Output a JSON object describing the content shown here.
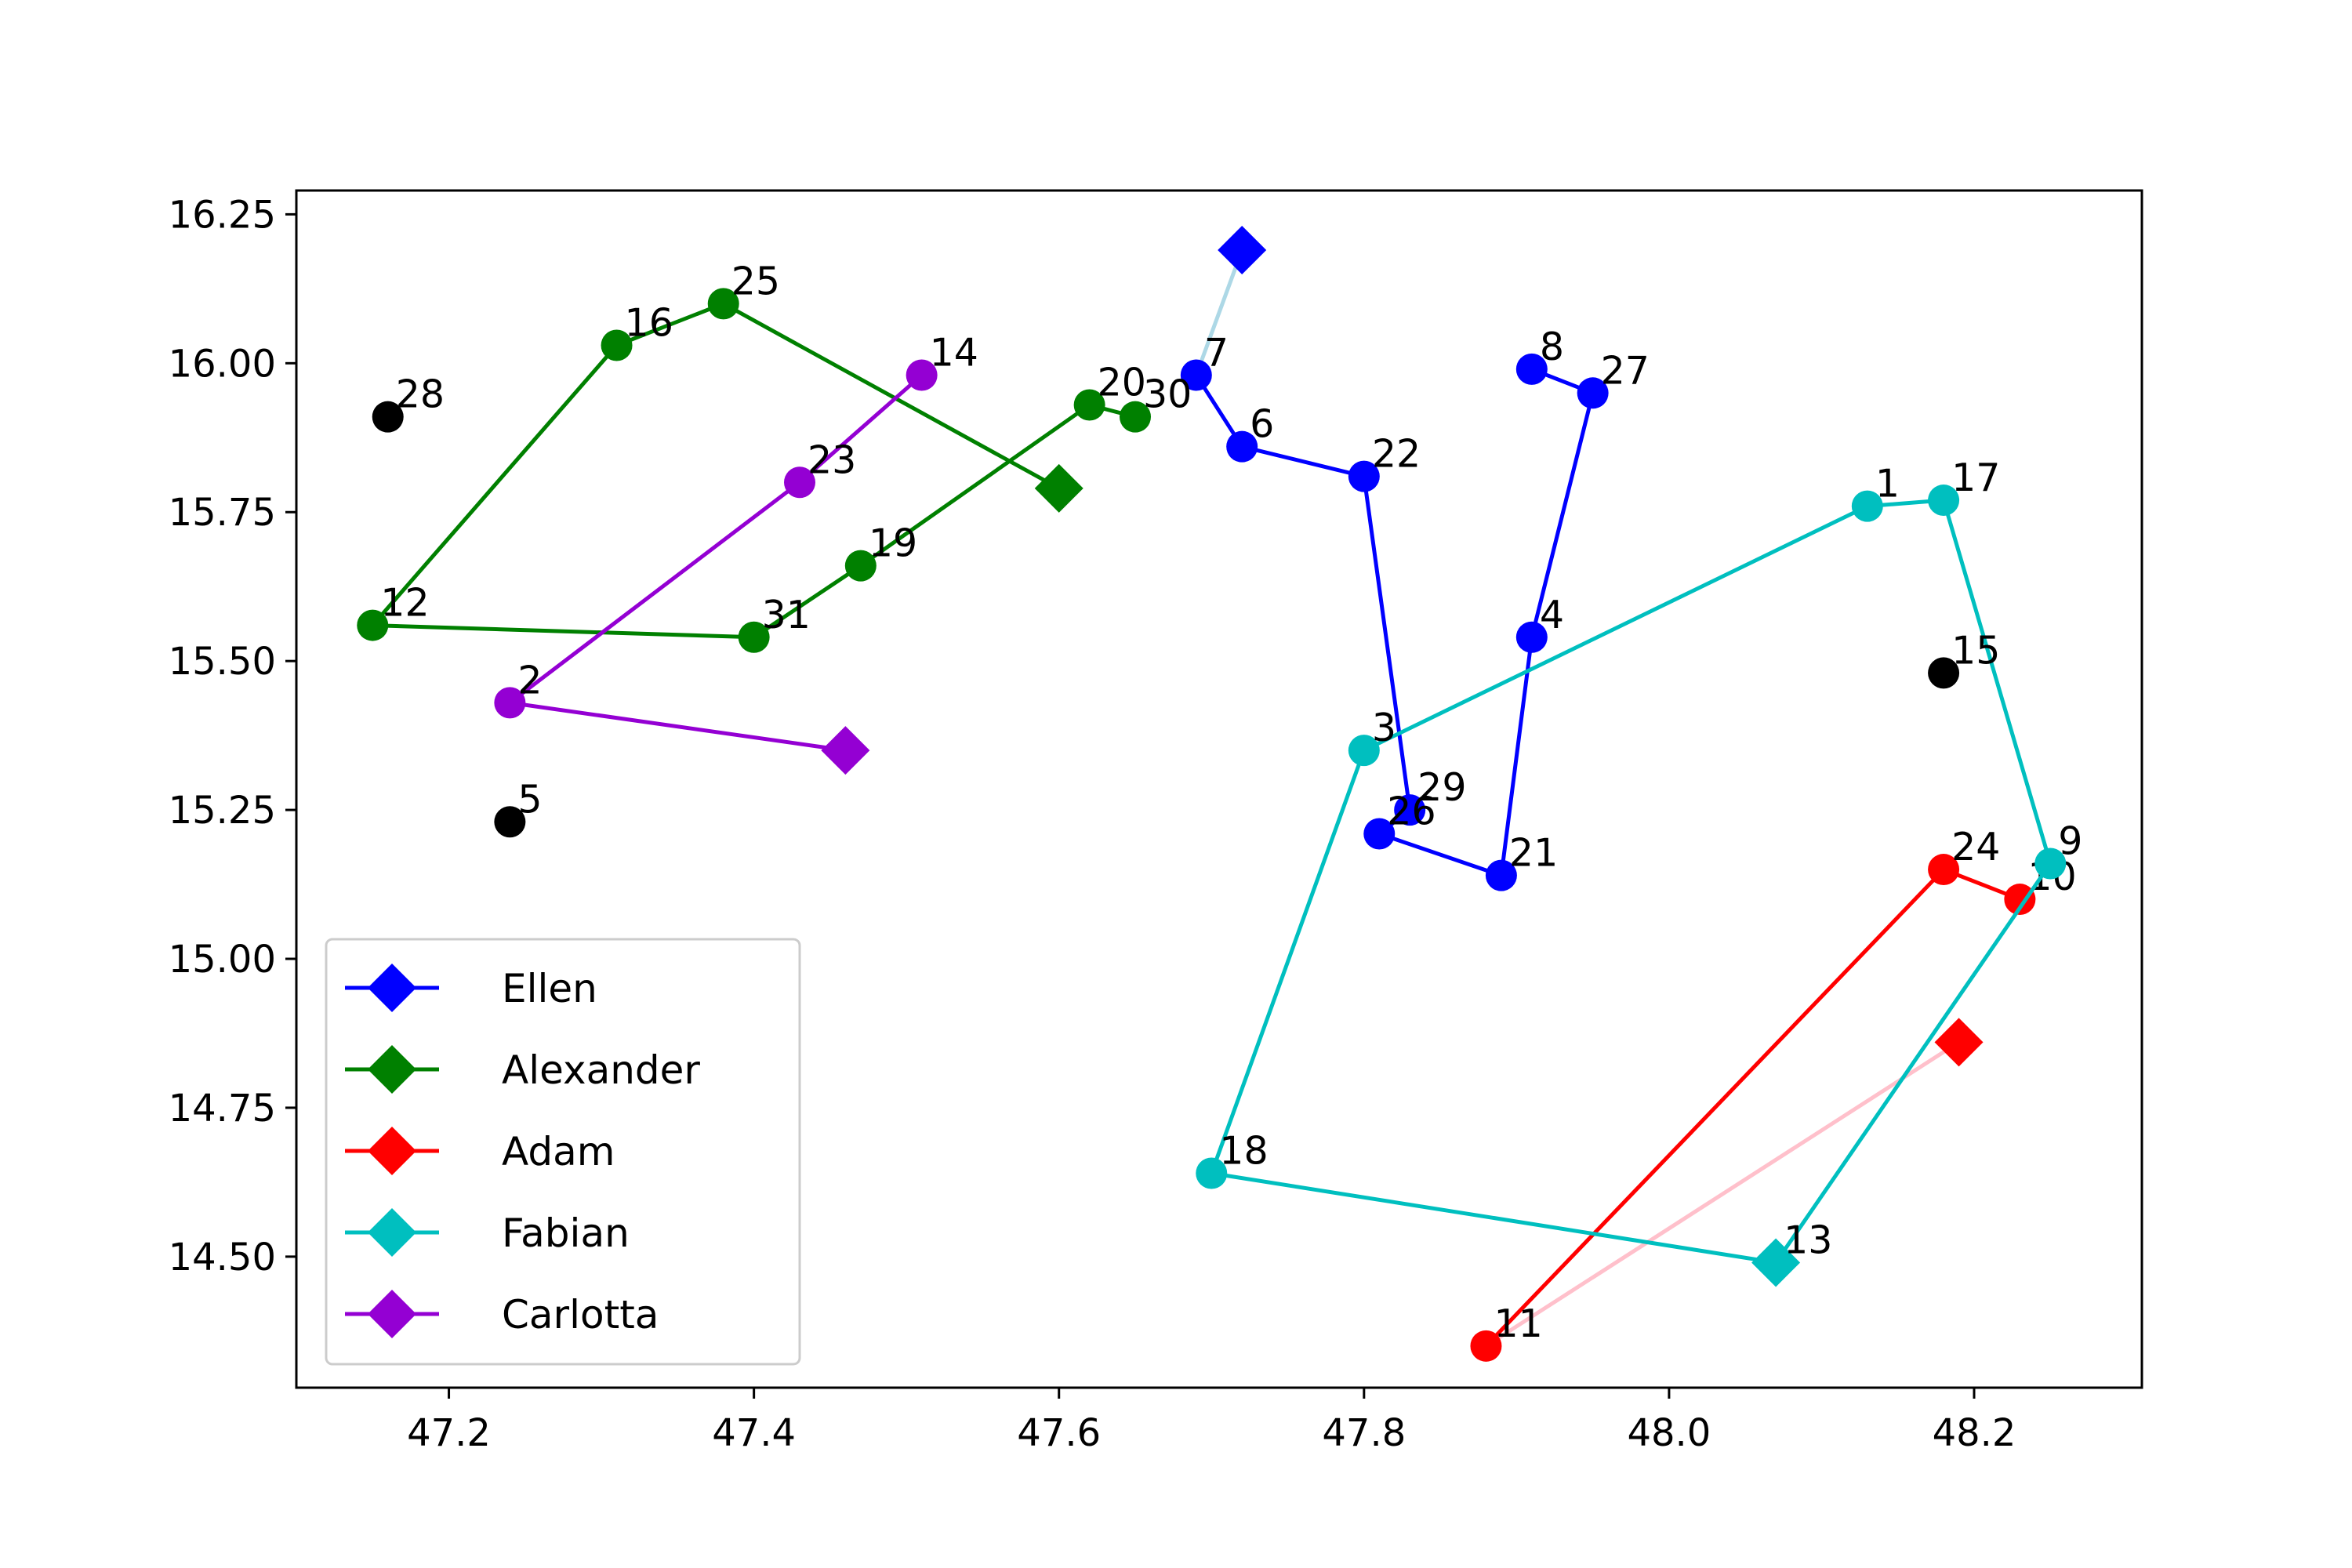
{
  "chart_data": {
    "type": "line",
    "title": "",
    "xlabel": "",
    "ylabel": "",
    "xlim": [
      47.1,
      48.31
    ],
    "ylim": [
      14.28,
      16.29
    ],
    "xticks": [
      "47.2",
      "47.4",
      "47.6",
      "47.8",
      "48.0",
      "48.2"
    ],
    "yticks": [
      "14.50",
      "14.75",
      "15.00",
      "15.25",
      "15.50",
      "15.75",
      "16.00",
      "16.25"
    ],
    "legend_position": "lower-left",
    "series": [
      {
        "name": "Ellen",
        "color": "#0000ff",
        "start": {
          "x": 47.72,
          "y": 16.19
        },
        "connector_color": "#add8e6",
        "points": [
          {
            "label": "7",
            "x": 47.69,
            "y": 15.98
          },
          {
            "label": "6",
            "x": 47.72,
            "y": 15.86
          },
          {
            "label": "22",
            "x": 47.8,
            "y": 15.81
          },
          {
            "label": "29",
            "x": 47.83,
            "y": 15.25
          },
          {
            "label": "26",
            "x": 47.81,
            "y": 15.21
          },
          {
            "label": "21",
            "x": 47.89,
            "y": 15.14
          },
          {
            "label": "4",
            "x": 47.91,
            "y": 15.54
          },
          {
            "label": "27",
            "x": 47.95,
            "y": 15.95
          },
          {
            "label": "8",
            "x": 47.91,
            "y": 15.99
          }
        ]
      },
      {
        "name": "Alexander",
        "color": "#008000",
        "start": {
          "x": 47.6,
          "y": 15.79
        },
        "connector_color": "#008000",
        "points": [
          {
            "label": "25",
            "x": 47.38,
            "y": 16.1
          },
          {
            "label": "16",
            "x": 47.31,
            "y": 16.03
          },
          {
            "label": "12",
            "x": 47.15,
            "y": 15.56
          },
          {
            "label": "31",
            "x": 47.4,
            "y": 15.54
          },
          {
            "label": "19",
            "x": 47.47,
            "y": 15.66
          },
          {
            "label": "20",
            "x": 47.62,
            "y": 15.93
          },
          {
            "label": "30",
            "x": 47.65,
            "y": 15.91
          }
        ]
      },
      {
        "name": "Adam",
        "color": "#ff0000",
        "start": {
          "x": 48.19,
          "y": 14.86
        },
        "connector_color": "#ffc0cb",
        "points": [
          {
            "label": "11",
            "x": 47.88,
            "y": 14.35
          },
          {
            "label": "24",
            "x": 48.18,
            "y": 15.15
          },
          {
            "label": "10",
            "x": 48.23,
            "y": 15.1
          }
        ]
      },
      {
        "name": "Fabian",
        "color": "#00bfbf",
        "start": {
          "x": 48.07,
          "y": 14.49
        },
        "connector_color": "#00bfbf",
        "points": [
          {
            "label": "9",
            "x": 48.25,
            "y": 15.16
          },
          {
            "label": "17",
            "x": 48.18,
            "y": 15.77
          },
          {
            "label": "1",
            "x": 48.13,
            "y": 15.76
          },
          {
            "label": "3",
            "x": 47.8,
            "y": 15.35
          },
          {
            "label": "18",
            "x": 47.7,
            "y": 14.64
          },
          {
            "label": "13",
            "x": 48.07,
            "y": 14.49
          }
        ]
      },
      {
        "name": "Carlotta",
        "color": "#9400d3",
        "start": {
          "x": 47.46,
          "y": 15.35
        },
        "connector_color": "#9400d3",
        "points": [
          {
            "label": "2",
            "x": 47.24,
            "y": 15.43
          },
          {
            "label": "23",
            "x": 47.43,
            "y": 15.8
          },
          {
            "label": "14",
            "x": 47.51,
            "y": 15.98
          }
        ]
      }
    ],
    "unassigned_points": {
      "color": "#000000",
      "points": [
        {
          "label": "28",
          "x": 47.16,
          "y": 15.91
        },
        {
          "label": "5",
          "x": 47.24,
          "y": 15.23
        },
        {
          "label": "15",
          "x": 48.18,
          "y": 15.48
        }
      ]
    }
  }
}
